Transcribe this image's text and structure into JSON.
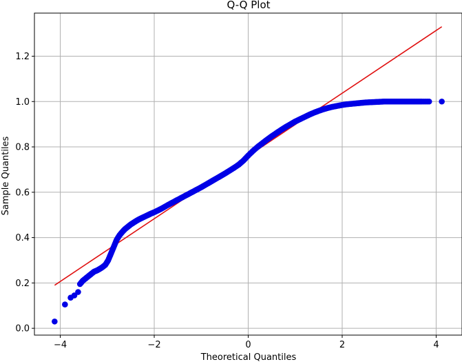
{
  "chart_data": {
    "type": "scatter",
    "title": "Q-Q Plot",
    "xlabel": "Theoretical Quantiles",
    "ylabel": "Sample Quantiles",
    "xlim": [
      -4.55,
      4.55
    ],
    "ylim": [
      -0.03,
      1.39
    ],
    "xticks": [
      -4,
      -2,
      0,
      2,
      4
    ],
    "yticks": [
      0.0,
      0.2,
      0.4,
      0.6,
      0.8,
      1.0,
      1.2
    ],
    "xtick_labels": [
      "−4",
      "−2",
      "0",
      "2",
      "4"
    ],
    "ytick_labels": [
      "0.0",
      "0.2",
      "0.4",
      "0.6",
      "0.8",
      "1.0",
      "1.2"
    ],
    "grid": true,
    "colors": {
      "points": "#0000e6",
      "line": "#e01010",
      "grid": "#b0b0b0"
    },
    "series": [
      {
        "kind": "points",
        "x": [
          -4.12,
          -3.9,
          -3.78,
          -3.7,
          -3.62,
          -3.58,
          -3.52,
          -3.46,
          -3.4,
          -3.34,
          -3.28,
          -3.22,
          -3.16,
          -3.1,
          -3.04,
          -2.98,
          -2.92,
          -2.86,
          -2.8,
          -2.74,
          -2.68,
          -2.62,
          -2.56,
          -2.5,
          -2.44,
          -2.38,
          -2.32,
          -2.26,
          -2.2,
          -2.14,
          -2.08,
          -2.0,
          -1.9,
          -1.8,
          -1.7,
          -1.6,
          -1.5,
          -1.4,
          -1.3,
          -1.2,
          -1.1,
          -1.0,
          -0.9,
          -0.8,
          -0.7,
          -0.6,
          -0.5,
          -0.4,
          -0.3,
          -0.2,
          -0.1,
          0.0,
          0.1,
          0.2,
          0.3,
          0.4,
          0.5,
          0.6,
          0.7,
          0.8,
          0.9,
          1.0,
          1.1,
          1.2,
          1.3,
          1.4,
          1.5,
          1.6,
          1.7,
          1.8,
          1.9,
          2.0,
          2.1,
          2.2,
          2.3,
          2.4,
          2.5,
          2.6,
          2.7,
          2.8,
          2.9,
          3.0,
          3.1,
          3.2,
          3.3,
          3.4,
          3.5,
          3.6,
          3.7,
          3.85,
          4.12
        ],
        "y": [
          0.03,
          0.105,
          0.135,
          0.145,
          0.16,
          0.195,
          0.21,
          0.22,
          0.23,
          0.24,
          0.25,
          0.255,
          0.262,
          0.27,
          0.28,
          0.3,
          0.33,
          0.36,
          0.39,
          0.41,
          0.425,
          0.438,
          0.448,
          0.458,
          0.466,
          0.474,
          0.481,
          0.487,
          0.493,
          0.499,
          0.505,
          0.512,
          0.522,
          0.533,
          0.545,
          0.556,
          0.567,
          0.578,
          0.589,
          0.6,
          0.611,
          0.622,
          0.634,
          0.646,
          0.658,
          0.67,
          0.682,
          0.695,
          0.708,
          0.722,
          0.74,
          0.762,
          0.782,
          0.8,
          0.816,
          0.832,
          0.847,
          0.861,
          0.875,
          0.888,
          0.9,
          0.912,
          0.922,
          0.932,
          0.942,
          0.951,
          0.959,
          0.966,
          0.972,
          0.977,
          0.981,
          0.985,
          0.988,
          0.99,
          0.992,
          0.994,
          0.996,
          0.997,
          0.998,
          0.999,
          1.0,
          1.0,
          1.0,
          1.0,
          1.0,
          1.0,
          1.0,
          1.0,
          1.0,
          1.0,
          1.0
        ]
      },
      {
        "kind": "line",
        "x": [
          -4.12,
          4.12
        ],
        "y": [
          0.19,
          1.33
        ]
      }
    ]
  }
}
